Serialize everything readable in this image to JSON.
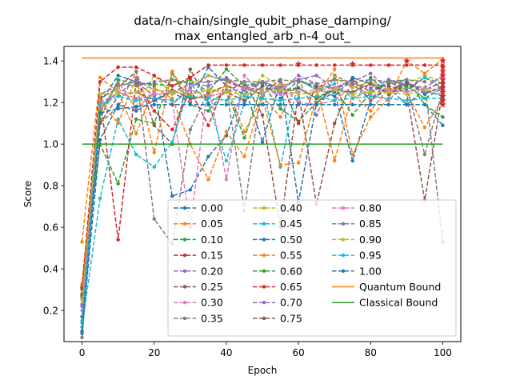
{
  "chart_data": {
    "type": "line",
    "title_lines": [
      "data/n-chain/single_qubit_phase_damping/",
      "max_entangled_arb_n-4_out_"
    ],
    "xlabel": "Epoch",
    "ylabel": "Score",
    "xlim": [
      -5,
      105
    ],
    "ylim": [
      0.05,
      1.47
    ],
    "xticks": [
      0,
      20,
      40,
      60,
      80,
      100
    ],
    "yticks": [
      0.2,
      0.4,
      0.6,
      0.8,
      1.0,
      1.2,
      1.4
    ],
    "ytick_labels": [
      "0.2",
      "0.4",
      "0.6",
      "0.8",
      "1.0",
      "1.2",
      "1.4"
    ],
    "grid": false,
    "legend_placement": "lower-center",
    "x": [
      0,
      5,
      10,
      15,
      20,
      25,
      30,
      35,
      40,
      45,
      50,
      55,
      60,
      65,
      70,
      75,
      80,
      85,
      90,
      95,
      100
    ],
    "series": [
      {
        "name": "0.00",
        "color": "#1f77b4",
        "values": [
          0.17,
          1.2,
          1.33,
          1.3,
          1.28,
          0.75,
          0.78,
          0.94,
          1.04,
          1.28,
          1.01,
          1.3,
          0.72,
          1.2,
          1.25,
          0.92,
          1.21,
          1.27,
          1.19,
          1.26,
          1.23
        ]
      },
      {
        "name": "0.05",
        "color": "#ff7f0e",
        "values": [
          0.53,
          1.32,
          1.25,
          1.05,
          1.27,
          1.22,
          1.0,
          0.83,
          1.06,
          0.94,
          1.23,
          1.13,
          1.3,
          1.28,
          0.92,
          1.24,
          1.16,
          1.27,
          1.25,
          1.08,
          1.22
        ]
      },
      {
        "name": "0.10",
        "color": "#2ca02c",
        "values": [
          0.3,
          1.0,
          0.81,
          1.12,
          1.1,
          1.34,
          1.19,
          1.16,
          1.26,
          1.03,
          1.29,
          1.17,
          1.11,
          1.2,
          1.27,
          1.14,
          1.25,
          1.29,
          1.31,
          1.19,
          1.13
        ]
      },
      {
        "name": "0.15",
        "color": "#d62728",
        "values": [
          0.27,
          1.23,
          0.54,
          1.3,
          1.16,
          1.07,
          1.26,
          1.09,
          1.3,
          1.27,
          1.24,
          1.31,
          1.1,
          1.28,
          1.27,
          1.31,
          1.25,
          1.3,
          1.26,
          1.32,
          1.27
        ]
      },
      {
        "name": "0.20",
        "color": "#9467bd",
        "values": [
          0.22,
          1.24,
          1.28,
          1.3,
          1.23,
          1.19,
          1.27,
          1.33,
          1.31,
          1.27,
          1.3,
          1.25,
          1.33,
          1.29,
          1.27,
          1.3,
          1.34,
          1.26,
          1.3,
          1.25,
          1.27
        ]
      },
      {
        "name": "0.25",
        "color": "#8c564b",
        "values": [
          0.31,
          1.22,
          1.27,
          1.35,
          1.09,
          1.0,
          1.36,
          1.2,
          1.25,
          1.3,
          1.14,
          0.6,
          1.25,
          0.71,
          1.1,
          1.31,
          1.21,
          1.28,
          1.25,
          0.73,
          1.26
        ]
      },
      {
        "name": "0.30",
        "color": "#e377c2",
        "values": [
          0.28,
          1.15,
          1.3,
          1.17,
          1.25,
          1.21,
          0.6,
          1.3,
          0.83,
          1.33,
          1.24,
          1.29,
          1.2,
          1.19,
          1.21,
          1.28,
          1.24,
          1.21,
          1.3,
          1.25,
          1.24
        ]
      },
      {
        "name": "0.35",
        "color": "#7f7f7f",
        "values": [
          0.07,
          1.1,
          1.18,
          1.35,
          0.64,
          0.52,
          1.07,
          1.25,
          1.28,
          0.68,
          1.3,
          1.27,
          1.31,
          1.14,
          1.33,
          1.29,
          1.21,
          1.31,
          1.28,
          0.95,
          1.26
        ]
      },
      {
        "name": "0.40",
        "color": "#bcbd22",
        "values": [
          0.33,
          1.14,
          1.27,
          1.18,
          1.33,
          1.24,
          1.29,
          1.33,
          1.3,
          1.21,
          1.33,
          1.28,
          1.31,
          1.26,
          1.32,
          1.27,
          1.3,
          1.25,
          1.29,
          1.33,
          1.3
        ]
      },
      {
        "name": "0.45",
        "color": "#17becf",
        "values": [
          0.12,
          0.74,
          1.12,
          0.95,
          0.89,
          1.01,
          1.29,
          1.2,
          0.92,
          1.2,
          1.28,
          0.89,
          1.31,
          1.26,
          1.29,
          1.22,
          1.26,
          1.3,
          1.27,
          1.32,
          1.29
        ]
      },
      {
        "name": "0.50",
        "color": "#1f77b4",
        "values": [
          0.1,
          1.02,
          1.19,
          1.16,
          1.21,
          1.25,
          1.2,
          1.37,
          1.28,
          1.24,
          1.3,
          1.22,
          1.31,
          1.27,
          1.23,
          1.32,
          1.29,
          1.25,
          1.3,
          1.24,
          1.28
        ]
      },
      {
        "name": "0.55",
        "color": "#ff7f0e",
        "values": [
          0.32,
          1.21,
          1.1,
          1.32,
          0.96,
          1.35,
          1.21,
          1.24,
          1.28,
          1.06,
          1.22,
          0.9,
          0.91,
          1.23,
          1.36,
          0.95,
          1.13,
          1.22,
          1.4,
          1.34,
          1.41
        ]
      },
      {
        "name": "0.60",
        "color": "#2ca02c",
        "values": [
          0.26,
          1.12,
          1.31,
          1.29,
          1.29,
          1.28,
          1.31,
          1.25,
          1.36,
          1.28,
          1.3,
          1.26,
          1.27,
          1.22,
          1.27,
          1.24,
          1.32,
          1.24,
          1.28,
          1.22,
          1.27
        ]
      },
      {
        "name": "0.65",
        "color": "#d62728",
        "values": [
          0.31,
          1.3,
          1.37,
          1.37,
          1.33,
          1.28,
          1.32,
          1.38,
          1.38,
          1.38,
          1.38,
          1.38,
          1.38,
          1.38,
          1.38,
          1.38,
          1.38,
          1.38,
          1.38,
          1.38,
          1.38
        ]
      },
      {
        "name": "0.70",
        "color": "#9467bd",
        "values": [
          0.23,
          1.2,
          1.24,
          1.31,
          1.26,
          1.25,
          1.29,
          1.28,
          1.32,
          1.26,
          1.3,
          1.27,
          1.31,
          1.33,
          1.27,
          1.29,
          1.27,
          1.31,
          1.29,
          1.27,
          1.33
        ]
      },
      {
        "name": "0.75",
        "color": "#8c564b",
        "values": [
          0.28,
          1.1,
          1.23,
          1.25,
          1.21,
          1.26,
          1.22,
          1.23,
          1.25,
          1.21,
          1.28,
          1.24,
          1.27,
          1.22,
          1.26,
          1.25,
          1.29,
          1.24,
          1.29,
          1.26,
          1.3
        ]
      },
      {
        "name": "0.80",
        "color": "#e377c2",
        "values": [
          0.2,
          1.18,
          1.25,
          1.22,
          1.24,
          1.25,
          1.26,
          1.23,
          1.25,
          1.27,
          1.26,
          1.24,
          1.25,
          1.26,
          1.27,
          1.24,
          1.25,
          1.26,
          1.25,
          1.27,
          1.26
        ]
      },
      {
        "name": "0.85",
        "color": "#7f7f7f",
        "values": [
          0.15,
          1.16,
          1.29,
          1.28,
          1.3,
          1.31,
          1.29,
          1.3,
          1.31,
          1.3,
          1.3,
          1.31,
          1.3,
          1.29,
          1.31,
          1.3,
          1.31,
          1.3,
          1.31,
          1.3,
          0.53
        ]
      },
      {
        "name": "0.90",
        "color": "#bcbd22",
        "values": [
          0.25,
          1.24,
          1.24,
          1.25,
          1.26,
          1.25,
          1.24,
          1.26,
          1.25,
          1.24,
          1.25,
          1.26,
          1.24,
          1.25,
          1.26,
          1.24,
          1.25,
          1.25,
          1.24,
          1.26,
          1.25
        ]
      },
      {
        "name": "0.95",
        "color": "#17becf",
        "values": [
          0.14,
          1.19,
          1.23,
          1.21,
          1.22,
          1.21,
          1.23,
          1.22,
          1.21,
          1.23,
          1.22,
          1.21,
          1.22,
          1.23,
          1.21,
          1.22,
          1.23,
          1.22,
          1.21,
          1.22,
          1.22
        ]
      },
      {
        "name": "1.00",
        "color": "#1f77b4",
        "values": [
          0.09,
          1.15,
          1.17,
          1.18,
          1.19,
          1.19,
          1.19,
          1.19,
          1.19,
          1.19,
          1.19,
          1.19,
          1.19,
          1.19,
          1.19,
          1.19,
          1.19,
          1.19,
          1.19,
          1.19,
          1.09
        ]
      }
    ],
    "reference_lines": [
      {
        "name": "Quantum Bound",
        "color": "#ff7f0e",
        "y": 1.414,
        "x": [
          0,
          100
        ]
      },
      {
        "name": "Classical Bound",
        "color": "#2ca02c",
        "y": 1.0,
        "x": [
          0,
          100
        ]
      }
    ],
    "star_markers": {
      "color": "#d62728",
      "points": [
        [
          60,
          1.385
        ],
        [
          75,
          1.385
        ],
        [
          90,
          1.4
        ],
        [
          100,
          1.4
        ],
        [
          100,
          1.37
        ],
        [
          100,
          1.35
        ],
        [
          100,
          1.33
        ],
        [
          100,
          1.31
        ],
        [
          100,
          1.29
        ],
        [
          100,
          1.27
        ],
        [
          100,
          1.25
        ],
        [
          100,
          1.23
        ],
        [
          100,
          1.21
        ],
        [
          100,
          1.19
        ]
      ]
    }
  }
}
